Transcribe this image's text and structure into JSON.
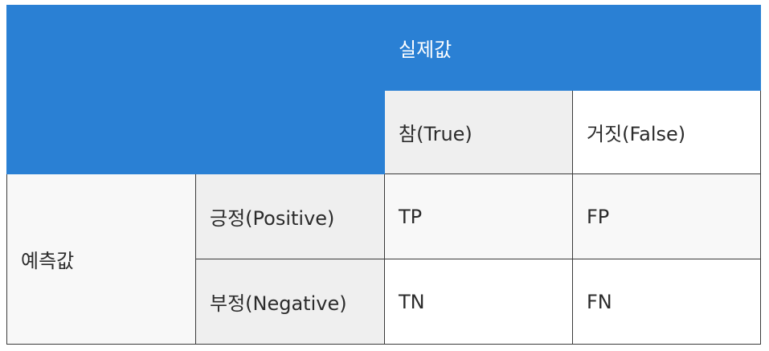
{
  "table": {
    "actual_header": "실제값",
    "actual_true": "참(True)",
    "actual_false": "거짓(False)",
    "predicted_header": "예측값",
    "predicted_positive": "긍정(Positive)",
    "predicted_negative": "부정(Negative)",
    "cells": {
      "tp": "TP",
      "fp": "FP",
      "tn": "TN",
      "fn": "FN"
    }
  },
  "colors": {
    "header_blue": "#2a80d4",
    "label_grey": "#efefef",
    "border": "#3a3a3a"
  }
}
